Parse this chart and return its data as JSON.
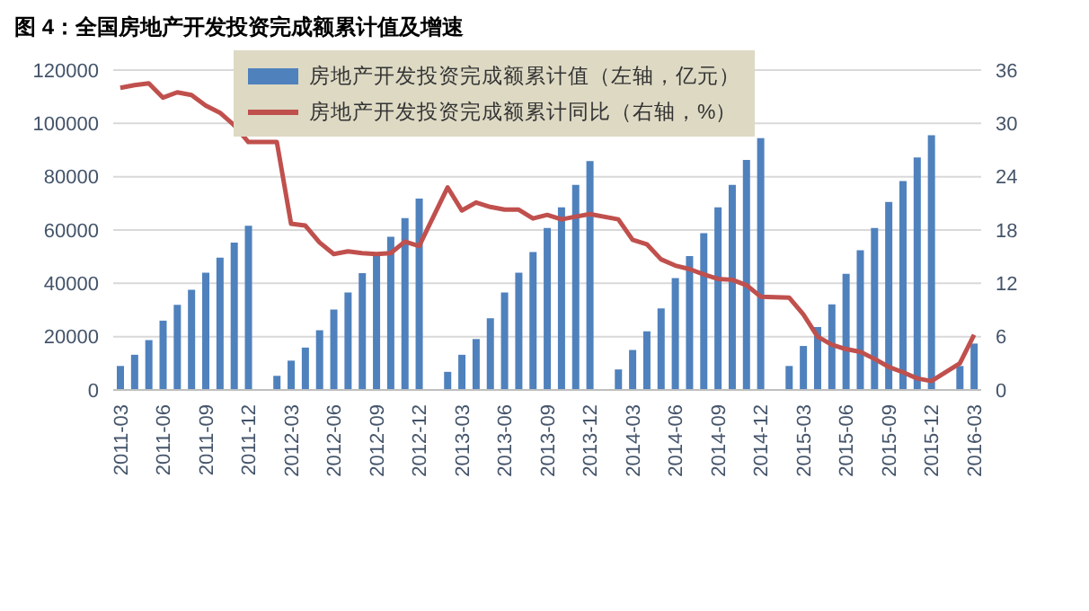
{
  "chart_data": {
    "type": "bar",
    "title": "图 4：全国房地产开发投资完成额累计值及增速",
    "categories": [
      "2011-03",
      null,
      null,
      "2011-06",
      null,
      null,
      "2011-09",
      null,
      null,
      "2011-12",
      null,
      null,
      "2012-03",
      null,
      null,
      "2012-06",
      null,
      null,
      "2012-09",
      null,
      null,
      "2012-12",
      null,
      null,
      "2013-03",
      null,
      null,
      "2013-06",
      null,
      null,
      "2013-09",
      null,
      null,
      "2013-12",
      null,
      null,
      "2014-03",
      null,
      null,
      "2014-06",
      null,
      null,
      "2014-09",
      null,
      null,
      "2014-12",
      null,
      null,
      "2015-03",
      null,
      null,
      "2015-06",
      null,
      null,
      "2015-09",
      null,
      null,
      "2015-12",
      null,
      null,
      "2016-03"
    ],
    "series": [
      {
        "name": "房地产开发投资完成额累计值（左轴，亿元）",
        "color": "#4f81bd",
        "values": [
          9000,
          13200,
          18700,
          26000,
          31900,
          37600,
          44000,
          49600,
          55300,
          61600,
          null,
          5300,
          11000,
          15900,
          22400,
          30200,
          36600,
          43800,
          50400,
          57500,
          64500,
          71800,
          null,
          6800,
          13200,
          19100,
          26900,
          36600,
          44000,
          51700,
          60800,
          68500,
          76900,
          85900,
          null,
          7700,
          15000,
          22000,
          30600,
          42000,
          50200,
          58800,
          68500,
          76900,
          86300,
          94500,
          null,
          9000,
          16500,
          23600,
          32100,
          43600,
          52400,
          60800,
          70500,
          78400,
          87200,
          95600,
          null,
          9000,
          17400
        ]
      },
      {
        "name": "房地产开发投资完成额累计同比（右轴，%）",
        "type": "line",
        "axis": "y2",
        "color": "#c0504d",
        "values": [
          34.0,
          34.3,
          34.5,
          32.9,
          33.5,
          33.2,
          32.0,
          31.2,
          29.8,
          27.9,
          null,
          27.9,
          18.7,
          18.5,
          16.6,
          15.3,
          15.6,
          15.4,
          15.3,
          15.4,
          16.7,
          16.2,
          null,
          22.8,
          20.2,
          21.1,
          20.6,
          20.3,
          20.3,
          19.3,
          19.7,
          19.2,
          19.5,
          19.8,
          null,
          19.2,
          16.9,
          16.4,
          14.7,
          14.0,
          13.6,
          13.0,
          12.5,
          12.4,
          11.8,
          10.5,
          null,
          10.4,
          8.5,
          6.0,
          5.1,
          4.6,
          4.3,
          3.5,
          2.6,
          2.0,
          1.3,
          1.0,
          null,
          3.0,
          6.2
        ]
      }
    ],
    "ylim": [
      0,
      120000
    ],
    "yticks": [
      0,
      20000,
      40000,
      60000,
      80000,
      100000,
      120000
    ],
    "y2lim": [
      0,
      36
    ],
    "y2ticks": [
      0,
      6,
      12,
      18,
      24,
      30,
      36
    ],
    "grid": "y",
    "legend": "top"
  }
}
